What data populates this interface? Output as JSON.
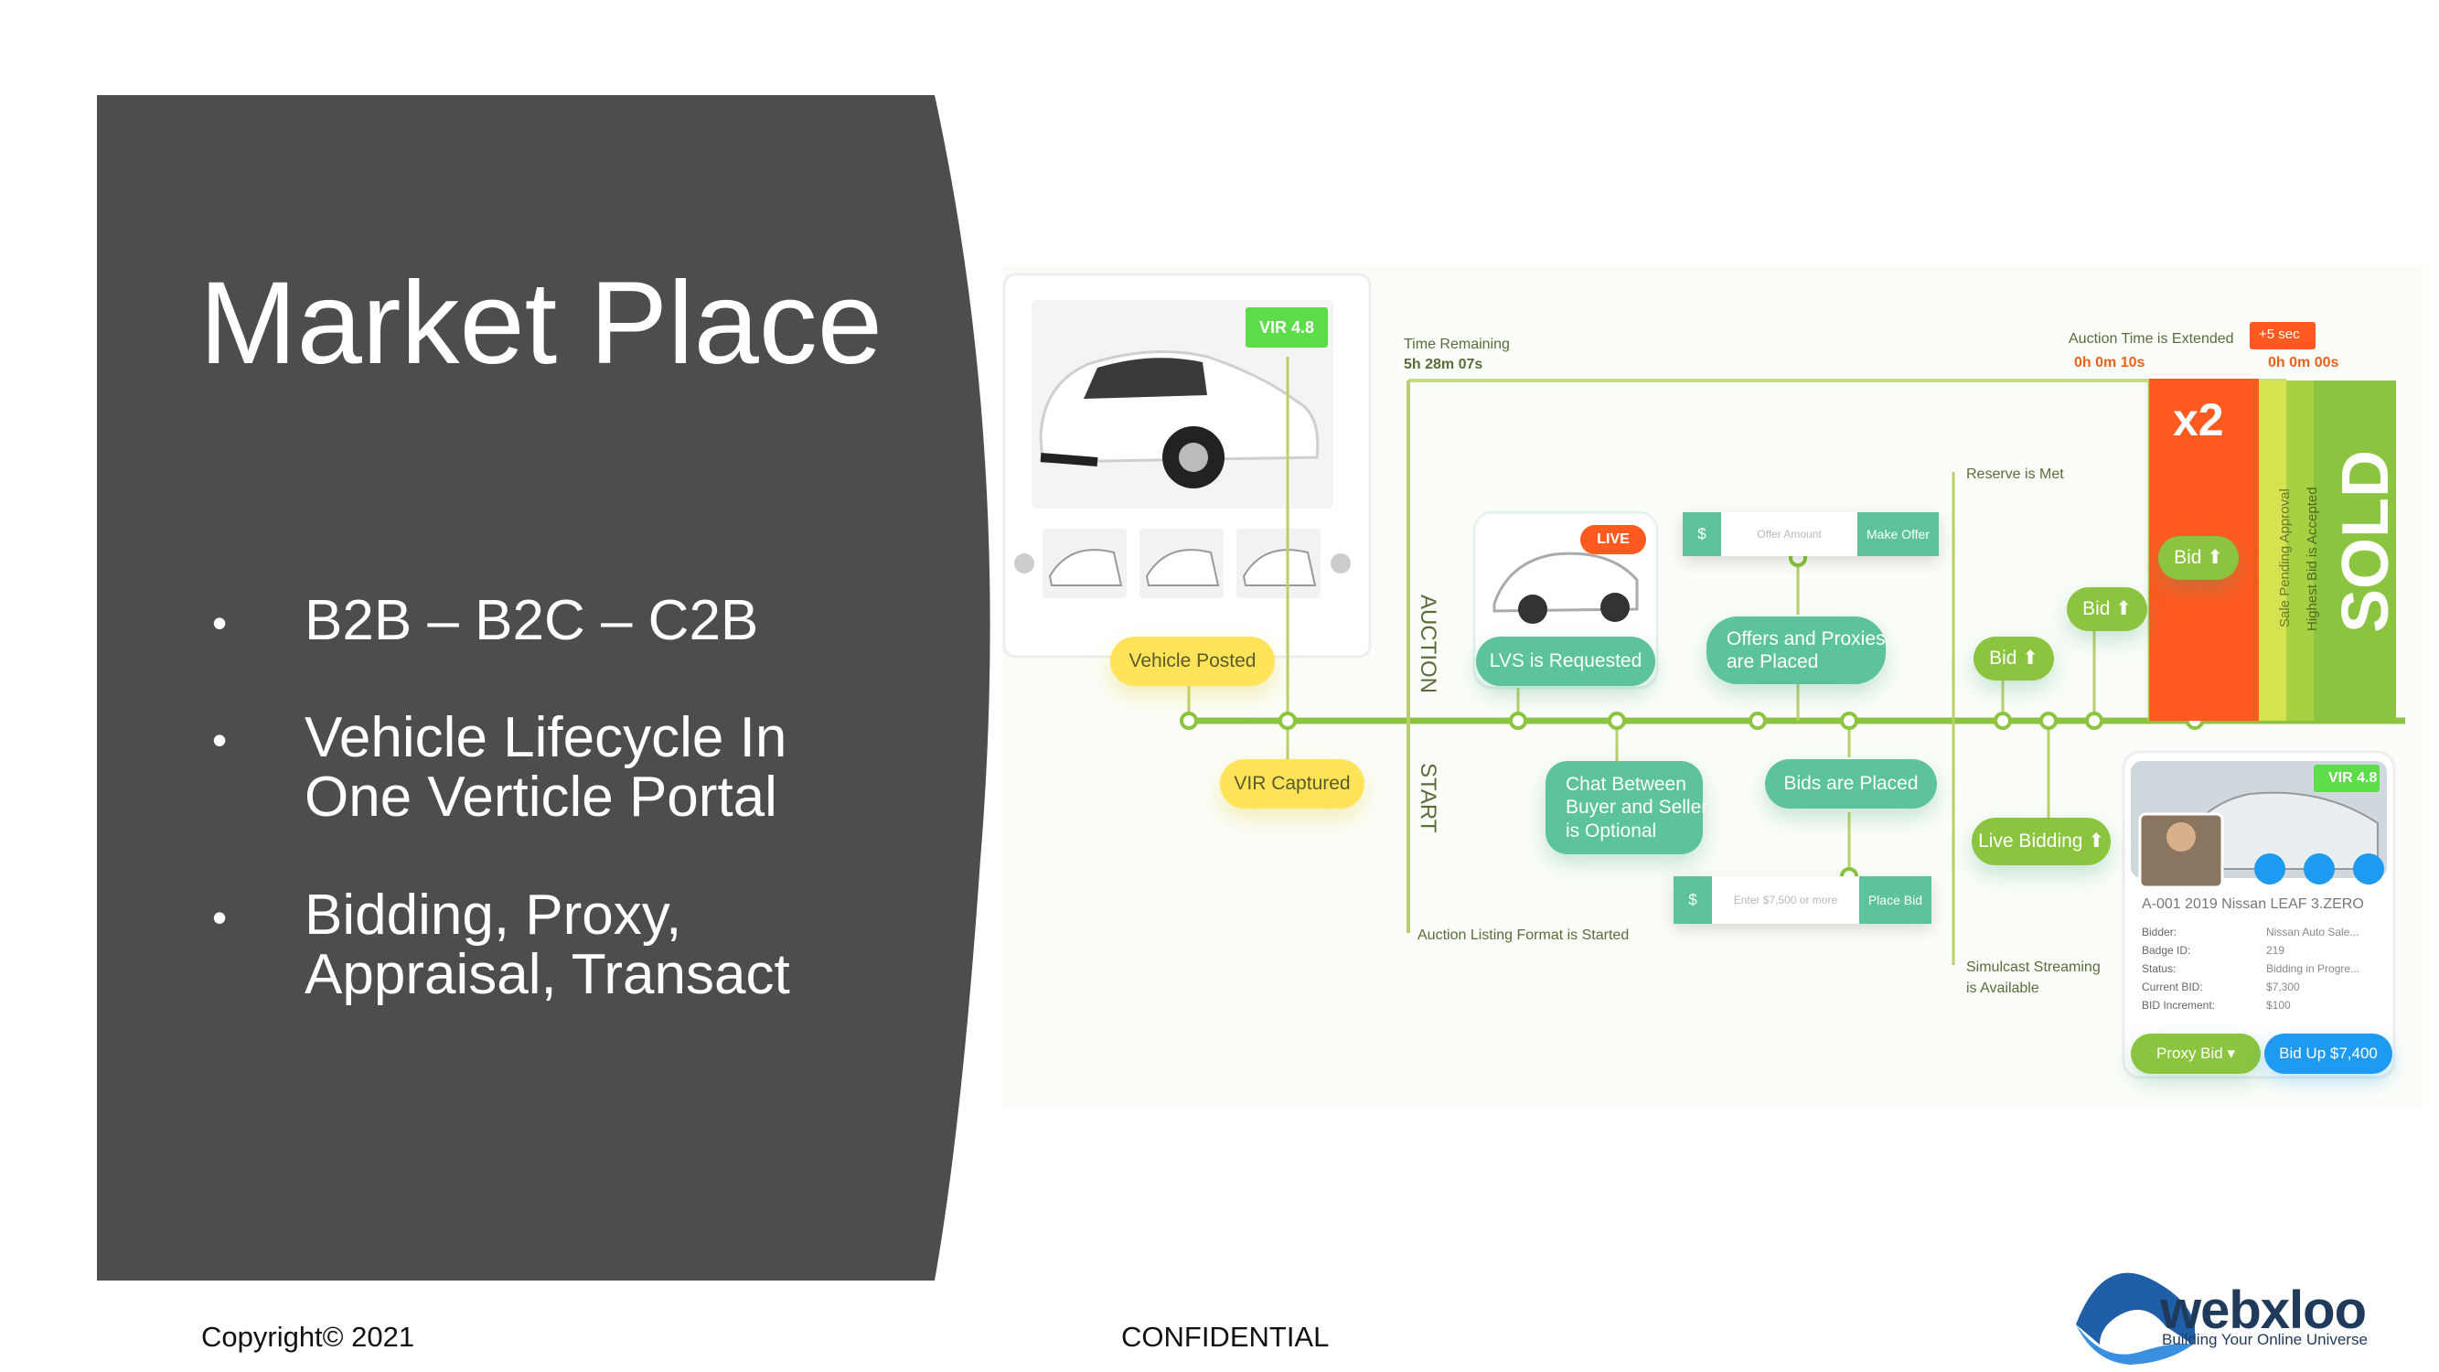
{
  "slide": {
    "title": "Market Place",
    "bullets": [
      "B2B – B2C – C2B",
      "Vehicle Lifecycle In\nOne Verticle Portal",
      "Bidding, Proxy,\nAppraisal, Transact"
    ],
    "footer_left": "Copyright© 2021",
    "footer_center": "CONFIDENTIAL"
  },
  "logo": {
    "name": "webxloo",
    "tagline": "Building Your Online Universe"
  },
  "diagram": {
    "time_remaining_label": "Time Remaining",
    "time_remaining_value": "5h 28m 07s",
    "auction_extended_label": "Auction Time is Extended",
    "auction_extended_value": "0h 0m 10s",
    "plus_sec": "+5 sec",
    "final_time": "0h 0m 00s",
    "multiplier": "x2",
    "sold": "SOLD",
    "sale_pending": "Sale Pending Approval",
    "highest_bid": "Highest Bid is Accepted",
    "reserve_met": "Reserve is Met",
    "auction_label": "AUCTION",
    "start_label": "START",
    "listing_started": "Auction Listing Format is Started",
    "simulcast": "Simulcast Streaming\nis Available",
    "vir_badge": "VIR 4.8",
    "live_badge": "LIVE",
    "offer_currency": "$",
    "offer_placeholder": "Offer Amount",
    "make_offer": "Make Offer",
    "bid_currency": "$",
    "bid_placeholder": "Enter $7,500 or more",
    "place_bid": "Place Bid",
    "pills": {
      "vehicle_posted": "Vehicle Posted",
      "vir_captured": "VIR Captured",
      "lvs_requested": "LVS is Requested",
      "offers_proxies": "Offers and Proxies\nare Placed",
      "chat": "Chat Between\nBuyer and Seller\nis Optional",
      "bids_placed": "Bids are Placed",
      "bid": "Bid ⬆",
      "live_bidding": "Live Bidding ⬆"
    },
    "card": {
      "vir_badge": "VIR 4.8",
      "title": "A-001 2019 Nissan LEAF 3.ZERO",
      "rows": [
        {
          "k": "Bidder:",
          "v": "Nissan Auto Sale..."
        },
        {
          "k": "Badge ID:",
          "v": "219"
        },
        {
          "k": "Status:",
          "v": "Bidding in Progre..."
        },
        {
          "k": "Current BID:",
          "v": "$7,300"
        },
        {
          "k": "BID Increment:",
          "v": "$100"
        }
      ],
      "proxy_bid": "Proxy Bid ▾",
      "bid_up": "Bid Up $7,400"
    }
  },
  "colors": {
    "panel": "#4d4d4d",
    "timeline": "#8bc53f",
    "teal": "#5cc39a",
    "yellow": "#ffe45a",
    "orange": "#ff5a1f",
    "blue": "#1e9bf0",
    "logo": "#1f3a5a"
  }
}
